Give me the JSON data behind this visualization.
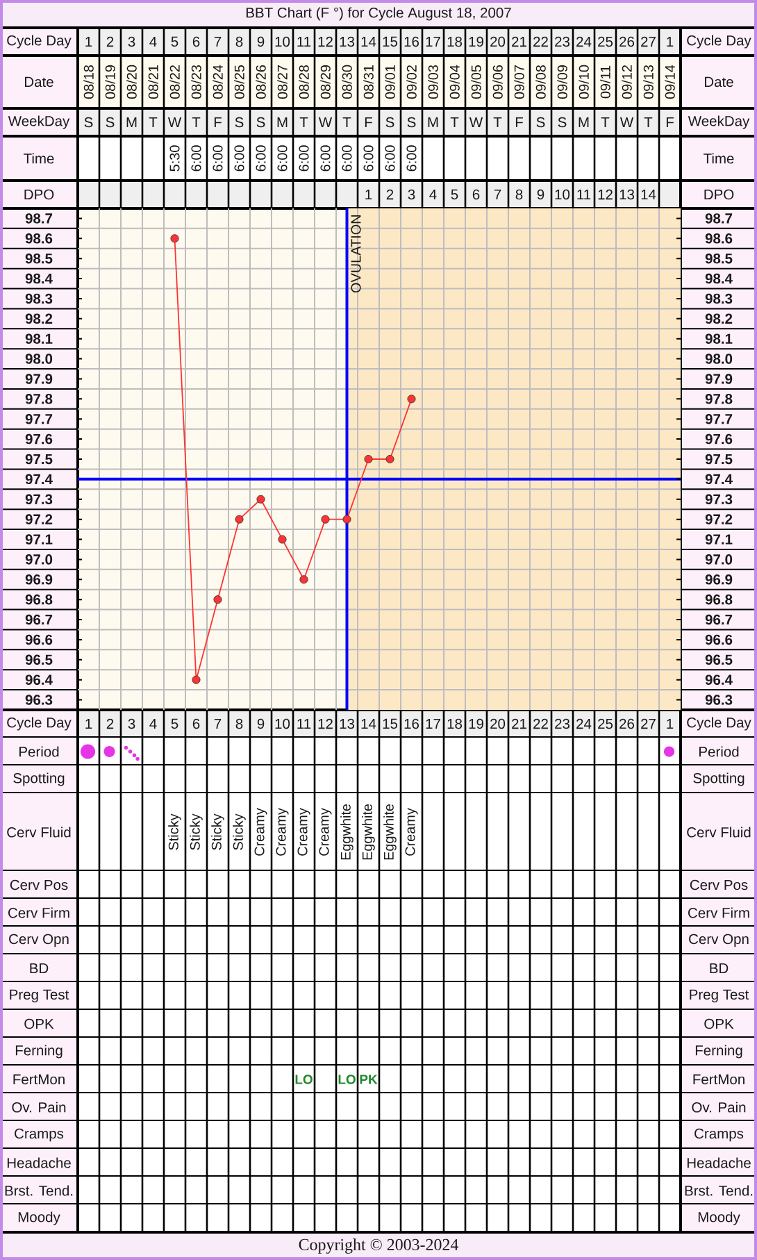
{
  "chart_data": {
    "type": "line",
    "title": "BBT Chart (F °) for Cycle August 18, 2007",
    "xlabel": "Date",
    "categories": [
      "08/18",
      "08/19",
      "08/20",
      "08/21",
      "08/22",
      "08/23",
      "08/24",
      "08/25",
      "08/26",
      "08/27",
      "08/28",
      "08/29",
      "08/30",
      "08/31",
      "09/01",
      "09/02",
      "09/03",
      "09/04",
      "09/05",
      "09/06",
      "09/07",
      "09/08",
      "09/09",
      "09/10",
      "09/11",
      "09/12",
      "09/13",
      "09/14"
    ],
    "values": [
      null,
      null,
      null,
      null,
      98.6,
      96.4,
      96.8,
      97.2,
      97.3,
      97.1,
      96.9,
      97.2,
      97.2,
      97.5,
      97.5,
      97.8,
      null,
      null,
      null,
      null,
      null,
      null,
      null,
      null,
      null,
      null,
      null,
      null
    ],
    "color": "#ff3333",
    "marker": "circle",
    "ylim": [
      96.25,
      98.75
    ],
    "yticks": [
      96.3,
      96.4,
      96.5,
      96.6,
      96.7,
      96.8,
      96.9,
      {
        "value": 97,
        "label": "97.0"
      },
      97.1,
      97.2,
      97.3,
      97.4,
      97.5,
      97.6,
      97.7,
      97.8,
      97.9,
      {
        "value": 98,
        "label": "98.0"
      },
      98.1,
      98.2,
      98.3,
      98.4,
      98.5,
      98.6,
      98.7
    ],
    "y2lim": [
      96.25,
      98.75
    ],
    "y2ticks": [
      96.3,
      96.4,
      96.5,
      96.6,
      96.7,
      96.8,
      96.9,
      {
        "value": 97,
        "label": "97.0"
      },
      97.1,
      97.2,
      97.3,
      97.4,
      97.5,
      97.6,
      97.7,
      97.8,
      97.9,
      {
        "value": 98,
        "label": "98.0"
      },
      98.1,
      98.2,
      98.3,
      98.4,
      98.5,
      98.6,
      98.7
    ],
    "grid": true,
    "ref_lines": [
      {
        "axis": "x",
        "value": "08/30",
        "label": "OVULATION",
        "color": "#0000ff"
      },
      {
        "axis": "y",
        "value": 97.4,
        "color": "#0000ff"
      }
    ],
    "bands": [
      {
        "axis": "x",
        "from": "08/30",
        "to": "09/14",
        "color": "#fde8c6"
      }
    ],
    "annotations": [
      "Cycle Day",
      "1",
      "2",
      "3",
      "4",
      "5",
      "6",
      "7",
      "8",
      "9",
      "10",
      "11",
      "12",
      "13",
      "14",
      "15",
      "16",
      "17",
      "18",
      "19",
      "20",
      "21",
      "22",
      "23",
      "24",
      "25",
      "26",
      "27",
      "1",
      "WeekDay",
      "S",
      "S",
      "M",
      "T",
      "W",
      "T",
      "F",
      "S",
      "S",
      "M",
      "T",
      "W",
      "T",
      "F",
      "S",
      "S",
      "M",
      "T",
      "W",
      "T",
      "F",
      "S",
      "S",
      "M",
      "T",
      "W",
      "T",
      "F",
      "Time",
      "5:30",
      "6:00",
      "6:00",
      "6:00",
      "6:00",
      "6:00",
      "6:00",
      "6:00",
      "6:00",
      "6:00",
      "6:00",
      "6:00",
      "DPO",
      "1",
      "2",
      "3",
      "4",
      "5",
      "6",
      "7",
      "8",
      "9",
      "10",
      "11",
      "12",
      "13",
      "14",
      "Cycle Day",
      "1",
      "2",
      "3",
      "4",
      "5",
      "6",
      "7",
      "8",
      "9",
      "10",
      "11",
      "12",
      "13",
      "14",
      "15",
      "16",
      "17",
      "18",
      "19",
      "20",
      "21",
      "22",
      "23",
      "24",
      "25",
      "26",
      "27",
      "1",
      "Period",
      "Spotting",
      "Cerv Fluid",
      "Sticky",
      "Sticky",
      "Sticky",
      "Sticky",
      "Creamy",
      "Creamy",
      "Creamy",
      "Creamy",
      "Eggwhite",
      "Eggwhite",
      "Eggwhite",
      "Creamy",
      "Cerv Pos",
      "Cerv Firm",
      "Cerv Opn",
      "BD",
      "Preg Test",
      "OPK",
      "Ferning",
      "FertMon",
      "LO",
      "LO",
      "PK",
      "Ov. Pain",
      "Cramps",
      "Headache",
      "Brst. Tend.",
      "Moody",
      "Copyright © 2003-2024"
    ]
  }
}
